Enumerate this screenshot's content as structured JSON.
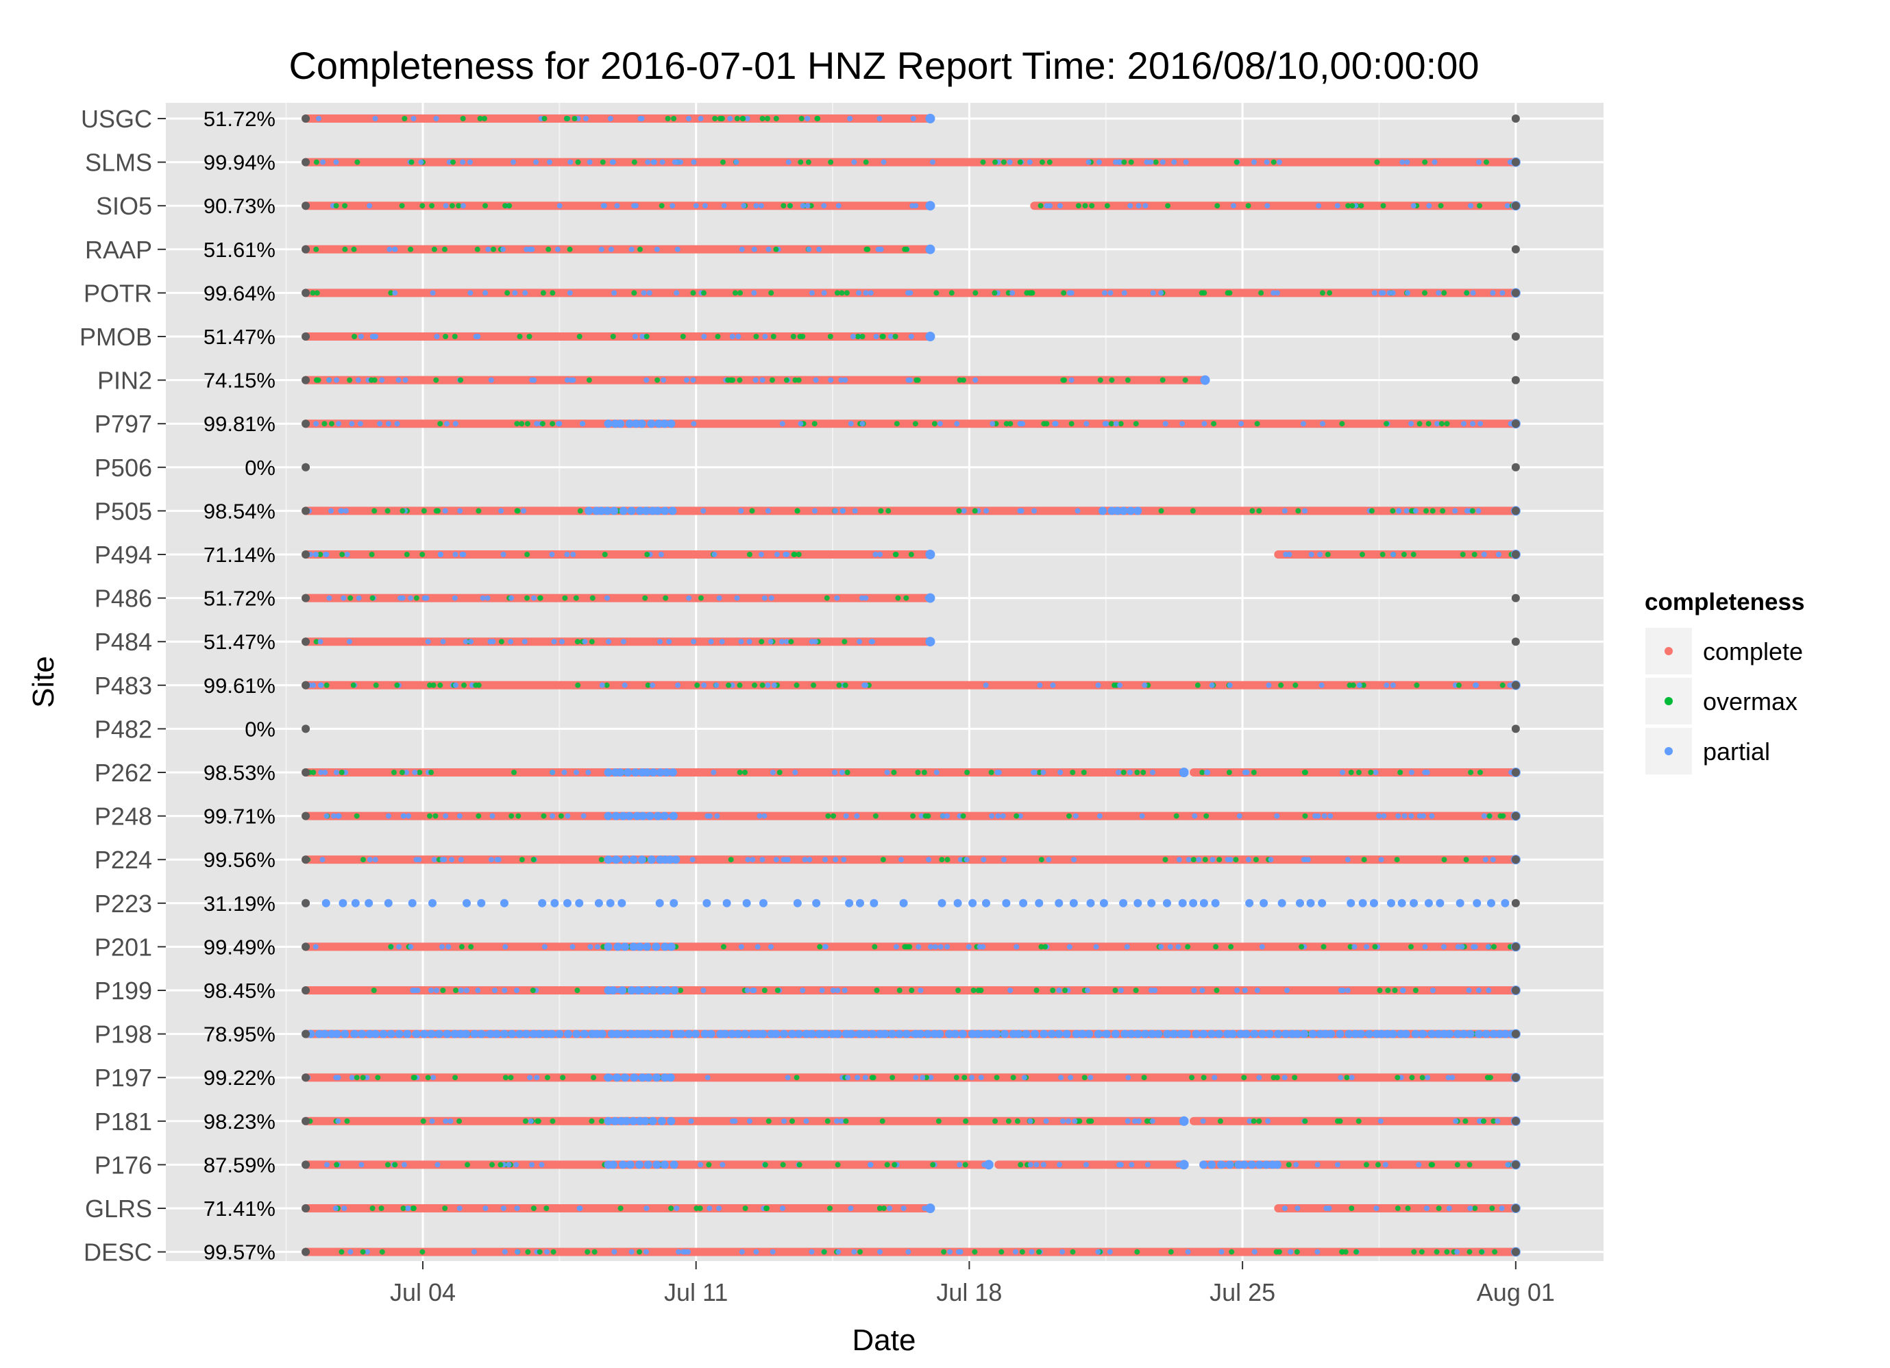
{
  "chart_data": {
    "type": "scatter",
    "title": "Completeness for  2016-07-01 HNZ  Report Time:  2016/08/10,00:00:00",
    "xlabel": "Date",
    "ylabel": "Site",
    "xlim": [
      "2016-06-27T10:00",
      "2016-08-03T06:00"
    ],
    "x_ticks": [
      {
        "date": "2016-07-04",
        "label": "Jul 04"
      },
      {
        "date": "2016-07-11",
        "label": "Jul 11"
      },
      {
        "date": "2016-07-18",
        "label": "Jul 18"
      },
      {
        "date": "2016-07-25",
        "label": "Jul 25"
      },
      {
        "date": "2016-08-01",
        "label": "Aug 01"
      }
    ],
    "x_minor_gridlines": [
      "2016-06-30T12:00",
      "2016-07-07T12:00",
      "2016-07-14T12:00",
      "2016-07-21T12:00",
      "2016-07-28T12:00"
    ],
    "background": "#e5e5e5",
    "grid": true,
    "legend": {
      "title": "completeness",
      "placement": "right",
      "entries": [
        {
          "name": "complete",
          "color": "#f8766d"
        },
        {
          "name": "overmax",
          "color": "#00ba38"
        },
        {
          "name": "partial",
          "color": "#619cff"
        }
      ]
    },
    "endpoint_marker_color": "#5c5c5c",
    "sites": [
      {
        "name": "USGC",
        "completeness_label": "51.72%",
        "segments": [
          [
            "2016-07-01",
            "2016-07-17"
          ]
        ],
        "blue_clusters": []
      },
      {
        "name": "SLMS",
        "completeness_label": "99.94%",
        "segments": [
          [
            "2016-07-01",
            "2016-08-01"
          ]
        ],
        "blue_clusters": []
      },
      {
        "name": "SIO5",
        "completeness_label": "90.73%",
        "segments": [
          [
            "2016-07-01",
            "2016-07-17"
          ],
          [
            "2016-07-19T16:00",
            "2016-08-01"
          ]
        ],
        "blue_clusters": []
      },
      {
        "name": "RAAP",
        "completeness_label": "51.61%",
        "segments": [
          [
            "2016-07-01",
            "2016-07-17"
          ]
        ],
        "blue_clusters": []
      },
      {
        "name": "POTR",
        "completeness_label": "99.64%",
        "segments": [
          [
            "2016-07-01",
            "2016-08-01"
          ]
        ],
        "blue_clusters": []
      },
      {
        "name": "PMOB",
        "completeness_label": "51.47%",
        "segments": [
          [
            "2016-07-01",
            "2016-07-17"
          ]
        ],
        "blue_clusters": []
      },
      {
        "name": "PIN2",
        "completeness_label": "74.15%",
        "segments": [
          [
            "2016-07-01",
            "2016-07-24T01:00"
          ]
        ],
        "blue_clusters": []
      },
      {
        "name": "P797",
        "completeness_label": "99.81%",
        "segments": [
          [
            "2016-07-01",
            "2016-08-01"
          ]
        ],
        "blue_clusters": [
          [
            "2016-07-08T18:00",
            "2016-07-10T12:00"
          ]
        ]
      },
      {
        "name": "P506",
        "completeness_label": "0%",
        "segments": [],
        "blue_clusters": []
      },
      {
        "name": "P505",
        "completeness_label": "98.54%",
        "segments": [
          [
            "2016-07-01",
            "2016-08-01"
          ]
        ],
        "blue_clusters": [
          [
            "2016-07-08T06:00",
            "2016-07-10T12:00"
          ],
          [
            "2016-07-21T10:00",
            "2016-07-22T12:00"
          ]
        ]
      },
      {
        "name": "P494",
        "completeness_label": "71.14%",
        "segments": [
          [
            "2016-07-01",
            "2016-07-17"
          ],
          [
            "2016-07-25T22:00",
            "2016-08-01"
          ]
        ],
        "blue_clusters": []
      },
      {
        "name": "P486",
        "completeness_label": "51.72%",
        "segments": [
          [
            "2016-07-01",
            "2016-07-17"
          ]
        ],
        "blue_clusters": []
      },
      {
        "name": "P484",
        "completeness_label": "51.47%",
        "segments": [
          [
            "2016-07-01",
            "2016-07-17"
          ]
        ],
        "blue_clusters": []
      },
      {
        "name": "P483",
        "completeness_label": "99.61%",
        "segments": [
          [
            "2016-07-01",
            "2016-08-01"
          ]
        ],
        "blue_clusters": []
      },
      {
        "name": "P482",
        "completeness_label": "0%",
        "segments": [],
        "blue_clusters": []
      },
      {
        "name": "P262",
        "completeness_label": "98.53%",
        "segments": [
          [
            "2016-07-01",
            "2016-07-23T12:00"
          ],
          [
            "2016-07-23T18:00",
            "2016-08-01"
          ]
        ],
        "blue_clusters": [
          [
            "2016-07-08T18:00",
            "2016-07-10T12:00"
          ]
        ]
      },
      {
        "name": "P248",
        "completeness_label": "99.71%",
        "segments": [
          [
            "2016-07-01",
            "2016-08-01"
          ]
        ],
        "blue_clusters": [
          [
            "2016-07-08T18:00",
            "2016-07-10T12:00"
          ]
        ]
      },
      {
        "name": "P224",
        "completeness_label": "99.56%",
        "segments": [
          [
            "2016-07-01",
            "2016-08-01"
          ]
        ],
        "blue_clusters": [
          [
            "2016-07-08T18:00",
            "2016-07-10T12:00"
          ]
        ]
      },
      {
        "name": "P223",
        "completeness_label": "31.19%",
        "segments": [],
        "blue_clusters": [
          [
            "2016-07-01",
            "2016-08-01"
          ]
        ]
      },
      {
        "name": "P201",
        "completeness_label": "99.49%",
        "segments": [
          [
            "2016-07-01",
            "2016-08-01"
          ]
        ],
        "blue_clusters": [
          [
            "2016-07-08T18:00",
            "2016-07-10T12:00"
          ]
        ]
      },
      {
        "name": "P199",
        "completeness_label": "98.45%",
        "segments": [
          [
            "2016-07-01",
            "2016-08-01"
          ]
        ],
        "blue_clusters": [
          [
            "2016-07-08T18:00",
            "2016-07-10T12:00"
          ]
        ]
      },
      {
        "name": "P198",
        "completeness_label": "78.95%",
        "segments": [
          [
            "2016-07-01",
            "2016-08-01"
          ]
        ],
        "blue_clusters": [
          [
            "2016-07-01",
            "2016-08-01"
          ]
        ]
      },
      {
        "name": "P197",
        "completeness_label": "99.22%",
        "segments": [
          [
            "2016-07-01",
            "2016-08-01"
          ]
        ],
        "blue_clusters": [
          [
            "2016-07-08T18:00",
            "2016-07-10T12:00"
          ]
        ]
      },
      {
        "name": "P181",
        "completeness_label": "98.23%",
        "segments": [
          [
            "2016-07-01",
            "2016-07-23T12:00"
          ],
          [
            "2016-07-23T18:00",
            "2016-08-01"
          ]
        ],
        "blue_clusters": [
          [
            "2016-07-08T18:00",
            "2016-07-10T12:00"
          ]
        ]
      },
      {
        "name": "P176",
        "completeness_label": "87.59%",
        "segments": [
          [
            "2016-07-01",
            "2016-07-18T12:00"
          ],
          [
            "2016-07-18T18:00",
            "2016-07-23T12:00"
          ],
          [
            "2016-07-24T00:00",
            "2016-08-01"
          ]
        ],
        "blue_clusters": [
          [
            "2016-07-08T18:00",
            "2016-07-10T12:00"
          ],
          [
            "2016-07-24T00:00",
            "2016-07-26T00:00"
          ]
        ]
      },
      {
        "name": "GLRS",
        "completeness_label": "71.41%",
        "segments": [
          [
            "2016-07-01",
            "2016-07-17"
          ],
          [
            "2016-07-25T22:00",
            "2016-08-01"
          ]
        ],
        "blue_clusters": []
      },
      {
        "name": "DESC",
        "completeness_label": "99.57%",
        "segments": [
          [
            "2016-07-01",
            "2016-08-01"
          ]
        ],
        "blue_clusters": []
      }
    ]
  }
}
